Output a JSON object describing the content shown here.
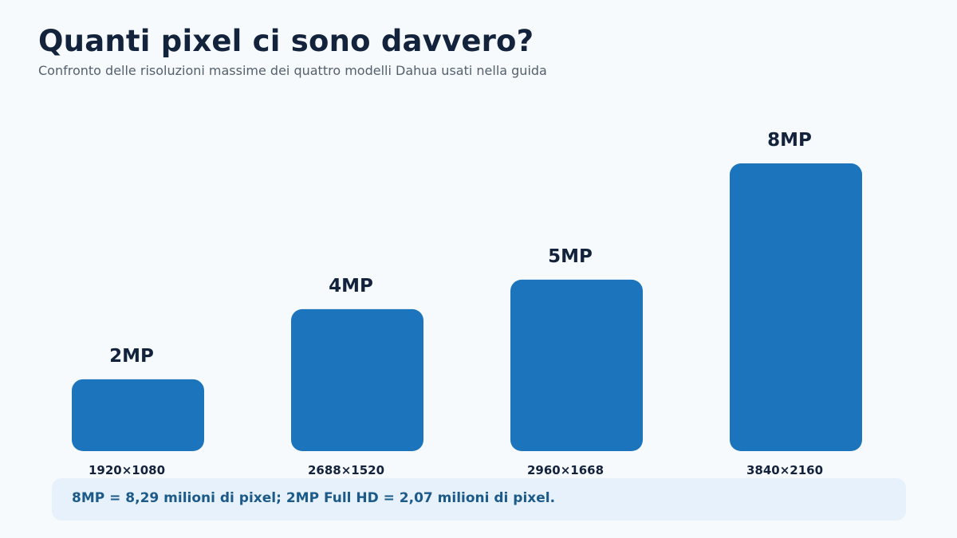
{
  "title": "Quanti pixel ci sono davvero?",
  "subtitle": "Confronto delle risoluzioni massime dei quattro modelli Dahua usati nella guida",
  "chart_data": {
    "type": "bar",
    "categories": [
      "1920×1080",
      "2688×1520",
      "2960×1668",
      "3840×2160"
    ],
    "values": [
      2.07,
      4.09,
      4.94,
      8.29
    ],
    "value_labels": [
      "2MP",
      "4MP",
      "5MP",
      "8MP"
    ],
    "title": "Quanti pixel ci sono davvero?",
    "subtitle": "Confronto delle risoluzioni massime dei quattro modelli Dahua usati nella guida",
    "xlabel": "",
    "ylabel": "",
    "ylim": [
      0,
      8.29
    ],
    "grid": false,
    "bar_color": "#1c75bc"
  },
  "note": "8MP = 8,29 milioni di pixel; 2MP Full HD = 2,07 milioni di pixel."
}
